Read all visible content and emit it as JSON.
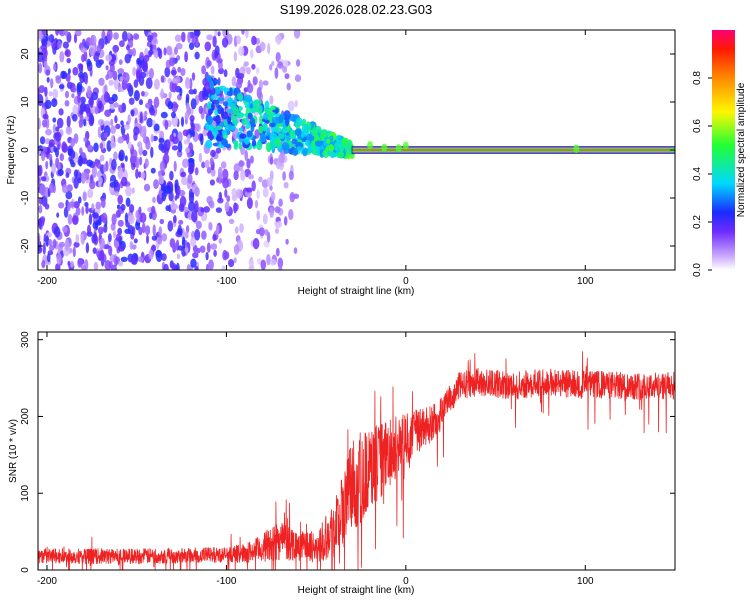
{
  "figure": {
    "title": "S199.2026.028.02.23.G03"
  },
  "chart_data": [
    {
      "type": "heatmap",
      "title": "S199.2026.028.02.23.G03",
      "xlabel": "Height of straight line (km)",
      "ylabel": "Frequency (Hz)",
      "xlim": [
        -205,
        150
      ],
      "ylim": [
        -25,
        25
      ],
      "xticks": [
        -200,
        -100,
        0,
        100
      ],
      "xtick_labels": [
        "-200",
        "-100",
        "0",
        "100"
      ],
      "yticks": [
        -20,
        -10,
        0,
        10,
        20
      ],
      "ytick_labels": [
        "-20",
        "-10",
        "0",
        "10",
        "20"
      ],
      "colorbar": {
        "label": "Normalized spectral amplitude",
        "range": [
          0,
          1
        ],
        "ticks": [
          0.0,
          0.2,
          0.4,
          0.6,
          0.8
        ],
        "tick_labels": [
          "0.0",
          "0.2",
          "0.4",
          "0.6",
          "0.8"
        ],
        "colormap": "rainbow"
      },
      "features": [
        {
          "name": "noise",
          "x_range": [
            -205,
            -75
          ],
          "f_range": [
            -25,
            25
          ],
          "amplitude": 0.15
        },
        {
          "name": "transition",
          "x_range": [
            -110,
            -30
          ],
          "center_f": [
            8,
            0
          ],
          "amplitude": 0.3
        },
        {
          "name": "signal_band",
          "x_range": [
            -30,
            150
          ],
          "f": 0,
          "amplitude": 0.95
        }
      ]
    },
    {
      "type": "line",
      "xlabel": "Height of straight line (km)",
      "ylabel": "SNR (10 * v/v)",
      "xlim": [
        -205,
        150
      ],
      "ylim": [
        0,
        310
      ],
      "xticks": [
        -200,
        -100,
        0,
        100
      ],
      "xtick_labels": [
        "-200",
        "-100",
        "0",
        "100"
      ],
      "yticks": [
        0,
        100,
        200,
        300
      ],
      "ytick_labels": [
        "0",
        "100",
        "200",
        "300"
      ],
      "color": "#ee2222",
      "series": [
        {
          "name": "SNR",
          "x": [
            -205,
            -150,
            -100,
            -90,
            -80,
            -70,
            -60,
            -50,
            -40,
            -35,
            -30,
            -25,
            -20,
            -15,
            -10,
            -5,
            0,
            5,
            10,
            15,
            20,
            25,
            30,
            40,
            60,
            80,
            100,
            120,
            150
          ],
          "values": [
            18,
            18,
            20,
            22,
            28,
            40,
            32,
            30,
            55,
            75,
            110,
            120,
            130,
            140,
            150,
            160,
            170,
            180,
            185,
            190,
            205,
            225,
            240,
            245,
            240,
            245,
            242,
            240,
            240
          ],
          "noise": [
            10,
            10,
            10,
            12,
            18,
            28,
            20,
            20,
            40,
            55,
            60,
            60,
            55,
            50,
            45,
            40,
            35,
            30,
            28,
            25,
            22,
            20,
            18,
            18,
            18,
            18,
            18,
            18,
            18
          ]
        }
      ]
    }
  ]
}
